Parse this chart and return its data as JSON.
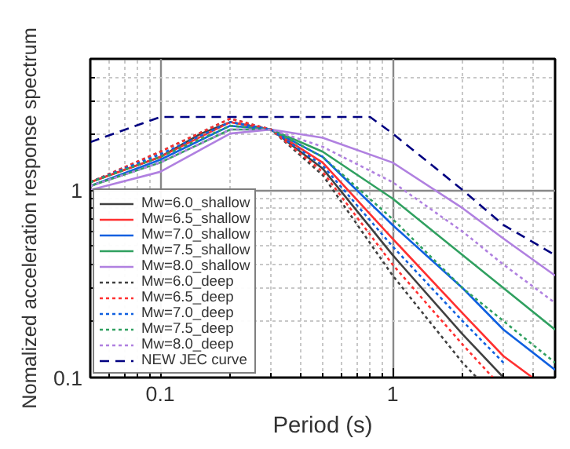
{
  "chart_data": {
    "type": "line",
    "xlabel": "Period (s)",
    "ylabel": "Nomalized acceleration response spectrum",
    "log": "xy",
    "grid": true,
    "legend": "bottom left",
    "xlim": [
      0.05,
      5
    ],
    "ylim": [
      0.1,
      5
    ],
    "xticks": [
      {
        "value": 0.06,
        "label": null
      },
      {
        "value": 0.07,
        "label": null
      },
      {
        "value": 0.08,
        "label": null
      },
      {
        "value": 0.09,
        "label": null
      },
      0.1,
      {
        "value": 0.2,
        "label": null
      },
      {
        "value": 0.3,
        "label": null
      },
      {
        "value": 0.4,
        "label": null
      },
      {
        "value": 0.5,
        "label": null
      },
      {
        "value": 0.6,
        "label": null
      },
      {
        "value": 0.7,
        "label": null
      },
      {
        "value": 0.8,
        "label": null
      },
      {
        "value": 0.9,
        "label": null
      },
      1,
      {
        "value": 2,
        "label": null
      },
      {
        "value": 3,
        "label": null
      },
      {
        "value": 4,
        "label": null
      }
    ],
    "yticks": [
      0.1,
      {
        "value": 0.2,
        "label": null
      },
      {
        "value": 0.3,
        "label": null
      },
      {
        "value": 0.4,
        "label": null
      },
      {
        "value": 0.5,
        "label": null
      },
      {
        "value": 0.6,
        "label": null
      },
      {
        "value": 0.7,
        "label": null
      },
      {
        "value": 0.8,
        "label": null
      },
      {
        "value": 0.9,
        "label": null
      },
      1,
      {
        "value": 2,
        "label": null
      },
      {
        "value": 3,
        "label": null
      },
      {
        "value": 4,
        "label": null
      }
    ],
    "series": [
      {
        "name": "Mw=6.0_shallow",
        "color": "#404040",
        "line_style": "solid",
        "x": [
          0.05,
          0.1,
          0.15,
          0.2,
          0.3,
          0.5,
          1,
          2,
          3
        ],
        "values": [
          1.1,
          1.5,
          2.0,
          2.3,
          2.1,
          1.3,
          0.45,
          0.17,
          0.1
        ]
      },
      {
        "name": "Mw=6.5_shallow",
        "color": "#ff3030",
        "line_style": "solid",
        "x": [
          0.05,
          0.1,
          0.2,
          0.3,
          0.5,
          1,
          2,
          3,
          4
        ],
        "values": [
          1.1,
          1.5,
          2.3,
          2.1,
          1.4,
          0.55,
          0.22,
          0.13,
          0.1
        ]
      },
      {
        "name": "Mw=7.0_shallow",
        "color": "#1060e0",
        "line_style": "solid",
        "x": [
          0.05,
          0.1,
          0.2,
          0.3,
          0.5,
          1,
          2,
          3,
          5
        ],
        "values": [
          1.05,
          1.45,
          2.2,
          2.1,
          1.5,
          0.65,
          0.3,
          0.18,
          0.11
        ]
      },
      {
        "name": "Mw=7.5_shallow",
        "color": "#30a060",
        "line_style": "solid",
        "x": [
          0.05,
          0.1,
          0.2,
          0.3,
          0.5,
          1,
          2,
          3,
          5
        ],
        "values": [
          1.05,
          1.4,
          2.1,
          2.1,
          1.6,
          0.9,
          0.45,
          0.3,
          0.18
        ]
      },
      {
        "name": "Mw=8.0_shallow",
        "color": "#b080e0",
        "line_style": "solid",
        "x": [
          0.05,
          0.1,
          0.2,
          0.3,
          0.5,
          1,
          2,
          3,
          5
        ],
        "values": [
          1.0,
          1.25,
          2.0,
          2.1,
          1.9,
          1.4,
          0.8,
          0.55,
          0.35
        ]
      },
      {
        "name": "Mw=6.0_deep",
        "color": "#404040",
        "line_style": "dotted",
        "x": [
          0.05,
          0.1,
          0.2,
          0.3,
          0.5,
          1,
          2,
          2.3
        ],
        "values": [
          1.1,
          1.6,
          2.4,
          2.1,
          1.2,
          0.35,
          0.12,
          0.1
        ]
      },
      {
        "name": "Mw=6.5_deep",
        "color": "#ff3030",
        "line_style": "dotted",
        "x": [
          0.05,
          0.1,
          0.2,
          0.3,
          0.5,
          1,
          2,
          2.7
        ],
        "values": [
          1.1,
          1.6,
          2.4,
          2.1,
          1.25,
          0.4,
          0.15,
          0.1
        ]
      },
      {
        "name": "Mw=7.0_deep",
        "color": "#1060e0",
        "line_style": "dotted",
        "x": [
          0.05,
          0.1,
          0.2,
          0.3,
          0.5,
          1,
          2,
          3
        ],
        "values": [
          1.1,
          1.55,
          2.3,
          2.1,
          1.35,
          0.5,
          0.2,
          0.12
        ]
      },
      {
        "name": "Mw=7.5_deep",
        "color": "#30a060",
        "line_style": "dotted",
        "x": [
          0.05,
          0.1,
          0.2,
          0.3,
          0.5,
          1,
          2,
          3,
          5
        ],
        "values": [
          1.1,
          1.5,
          2.2,
          2.1,
          1.5,
          0.7,
          0.3,
          0.2,
          0.12
        ]
      },
      {
        "name": "Mw=8.0_deep",
        "color": "#b080e0",
        "line_style": "dotted",
        "x": [
          0.05,
          0.1,
          0.2,
          0.3,
          0.5,
          1,
          2,
          3,
          5
        ],
        "values": [
          1.05,
          1.4,
          2.1,
          2.1,
          1.7,
          1.1,
          0.6,
          0.4,
          0.25
        ]
      },
      {
        "name": "NEW JEC curve",
        "color": "#000080",
        "line_style": "dashed",
        "x": [
          0.05,
          0.1,
          0.8,
          1,
          2,
          3,
          5
        ],
        "values": [
          1.8,
          2.45,
          2.45,
          2.0,
          1.0,
          0.65,
          0.45
        ]
      }
    ]
  }
}
